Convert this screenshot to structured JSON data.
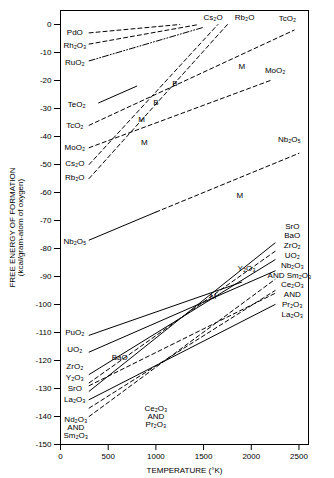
{
  "chart_data": {
    "type": "line",
    "x_label": "TEMPERATURE (°K)",
    "y_label": "FREE ENERGY OF FORMATION\n(kcal/gram-atom of oxygen)",
    "xlim": [
      0,
      2600
    ],
    "xticks": [
      0,
      500,
      1000,
      1500,
      2000,
      2500
    ],
    "ylim": [
      -150,
      5
    ],
    "yticks": [
      0,
      -10,
      -20,
      -30,
      -40,
      -50,
      -60,
      -70,
      -80,
      -90,
      -100,
      -110,
      -120,
      -130,
      -140,
      -150
    ],
    "color": "#000000",
    "series": [
      {
        "name": "PdO",
        "line_style": "dashed",
        "x": [
          300,
          1250
        ],
        "values": [
          -3,
          0
        ],
        "name_at": [
          150,
          -3
        ]
      },
      {
        "name": "Rh₂O₃",
        "line_style": "dashed",
        "x": [
          300,
          1450
        ],
        "values": [
          -7,
          0
        ],
        "name_at": [
          150,
          -7.5
        ]
      },
      {
        "name": "RuO₂",
        "line_style": "dashdot",
        "x": [
          300,
          1500
        ],
        "values": [
          -13,
          -1
        ],
        "name_at": [
          150,
          -13.5
        ]
      },
      {
        "name": "TeO₂",
        "line_style": "solid",
        "x": [
          400,
          800
        ],
        "values": [
          -28,
          -22
        ],
        "name_at": [
          170,
          -28.5
        ]
      },
      {
        "name": "TcO₂",
        "line_style": "dashed",
        "x": [
          300,
          2450
        ],
        "values": [
          -36,
          -2
        ],
        "name_at": [
          150,
          -36
        ]
      },
      {
        "name": "MoO₂",
        "line_style": "dashed",
        "x": [
          300,
          2200
        ],
        "values": [
          -44,
          -20
        ],
        "name_at": [
          150,
          -44
        ]
      },
      {
        "name": "Cs₂O",
        "line_style": "dashed",
        "x": [
          300,
          1650
        ],
        "values": [
          -50,
          0
        ],
        "name_at": [
          150,
          -49.5
        ]
      },
      {
        "name": "Rb₂O",
        "line_style": "dashed",
        "x": [
          300,
          1750
        ],
        "values": [
          -55,
          0
        ],
        "name_at": [
          150,
          -54.5
        ]
      },
      {
        "name": "Nb₂O₅",
        "line_style": "solid",
        "x": [
          300,
          1000
        ],
        "values": [
          -77,
          -67
        ],
        "name_at": [
          150,
          -77.5
        ]
      },
      {
        "name": "Nb₂O₅",
        "line_style": "dashed",
        "x": [
          1000,
          2500
        ],
        "values": [
          -67,
          -46
        ],
        "name_at": [
          2400,
          -41
        ]
      },
      {
        "name": "PuO₂",
        "line_style": "solid",
        "x": [
          300,
          1900
        ],
        "values": [
          -111,
          -92
        ],
        "name_at": [
          150,
          -110
        ]
      },
      {
        "name": "UO₂",
        "line_style": "solid",
        "x": [
          300,
          2250
        ],
        "values": [
          -117,
          -88
        ],
        "name_at": [
          150,
          -116
        ]
      },
      {
        "name": "ZrO₂",
        "line_style": "solid",
        "x": [
          300,
          2250
        ],
        "values": [
          -125,
          -84
        ],
        "name_at": [
          150,
          -122
        ]
      },
      {
        "name": "BaO",
        "line_style": "dashed",
        "x": [
          300,
          2250
        ],
        "values": [
          -128,
          -81
        ],
        "name_at": [
          620,
          -119
        ]
      },
      {
        "name": "Y₂O₃",
        "line_style": "dashed",
        "x": [
          300,
          2250
        ],
        "values": [
          -129,
          -96
        ],
        "name_at": [
          150,
          -126
        ]
      },
      {
        "name": "SrO",
        "line_style": "solid",
        "x": [
          300,
          2250
        ],
        "values": [
          -131,
          -78
        ],
        "name_at": [
          150,
          -130
        ]
      },
      {
        "name": "La₂O₃",
        "line_style": "solid",
        "x": [
          300,
          2250
        ],
        "values": [
          -134,
          -100
        ],
        "name_at": [
          150,
          -134
        ]
      },
      {
        "name": "Ce₂O₃\nAND\nPr₂O₃",
        "line_style": "dashed",
        "x": [
          300,
          2250
        ],
        "values": [
          -137,
          -95
        ],
        "name_at": [
          1000,
          -140
        ]
      },
      {
        "name": "Nd₂O₃\nAND\nSm₂O₃",
        "line_style": "dashed",
        "x": [
          300,
          2250
        ],
        "values": [
          -140,
          -91
        ],
        "name_at": [
          160,
          -144
        ]
      }
    ],
    "annotations": [
      {
        "text": "TcO₂",
        "x": [
          2380
        ],
        "y": [
          2
        ]
      },
      {
        "text": "Cs₂O",
        "x": [
          1600
        ],
        "y": [
          2.5
        ]
      },
      {
        "text": "Rb₂O",
        "x": [
          1930
        ],
        "y": [
          2.5
        ]
      },
      {
        "text": "MoO₂",
        "x": [
          2250
        ],
        "y": [
          -16.5
        ]
      },
      {
        "text": "SrO",
        "x": [
          2430
        ],
        "y": [
          -72
        ]
      },
      {
        "text": "BaO",
        "x": [
          2430
        ],
        "y": [
          -75.5
        ]
      },
      {
        "text": "ZrO₂",
        "x": [
          2430
        ],
        "y": [
          -79
        ]
      },
      {
        "text": "UO₂",
        "x": [
          2430
        ],
        "y": [
          -82.5
        ]
      },
      {
        "text": "Nb₂O₃",
        "x": [
          2430
        ],
        "y": [
          -86
        ]
      },
      {
        "text": "AND Sm₂O₃",
        "x": [
          2400
        ],
        "y": [
          -89.5
        ]
      },
      {
        "text": "Y₂O₃",
        "x": [
          1950
        ],
        "y": [
          -87
        ]
      },
      {
        "text": "Ce₂O₃",
        "x": [
          2430
        ],
        "y": [
          -93
        ]
      },
      {
        "text": "AND",
        "x": [
          2430
        ],
        "y": [
          -96.5
        ]
      },
      {
        "text": "Pr₂O₃",
        "x": [
          2430
        ],
        "y": [
          -100
        ]
      },
      {
        "text": "La₂O₃",
        "x": [
          2430
        ],
        "y": [
          -103.5
        ]
      },
      {
        "text": "B",
        "x": [
          1000
        ],
        "y": [
          -28
        ]
      },
      {
        "text": "B",
        "x": [
          1200
        ],
        "y": [
          -21
        ]
      },
      {
        "text": "M",
        "x": [
          850
        ],
        "y": [
          -34
        ]
      },
      {
        "text": "M",
        "x": [
          880
        ],
        "y": [
          -42
        ]
      },
      {
        "text": "M",
        "x": [
          1900
        ],
        "y": [
          -15
        ]
      },
      {
        "text": "M",
        "x": [
          1880
        ],
        "y": [
          -61
        ]
      },
      {
        "text": "M",
        "x": [
          1600
        ],
        "y": [
          -97
        ]
      }
    ]
  }
}
